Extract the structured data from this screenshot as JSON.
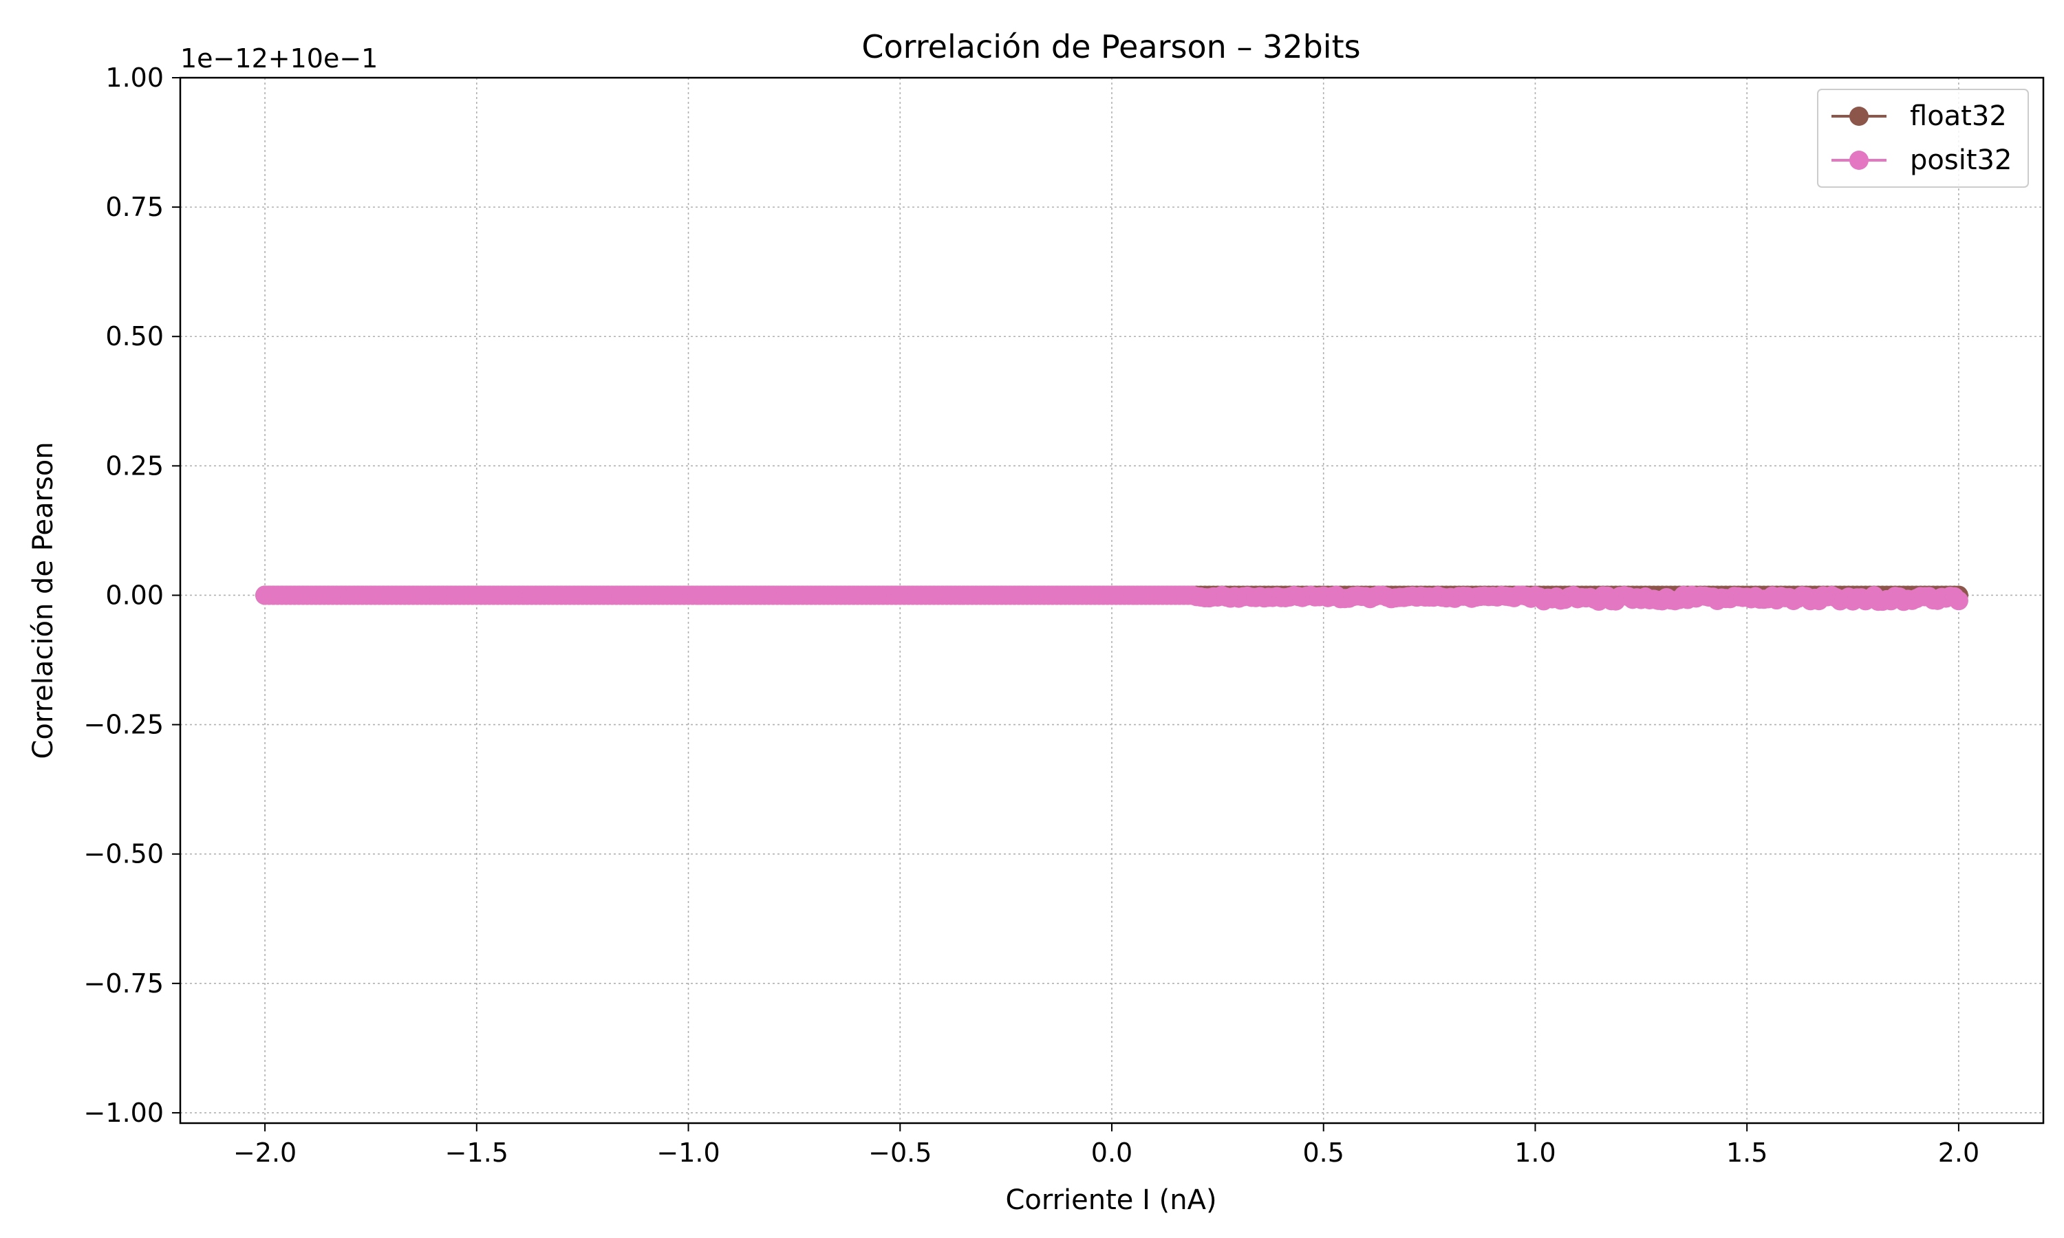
{
  "chart_data": {
    "type": "line",
    "title": "Correlación de Pearson – 32bits",
    "xlabel": "Corriente I (nA)",
    "ylabel": "Correlación de Pearson",
    "y_offset_text": "1e−12+10e−1",
    "xlim": [
      -2.2,
      2.2
    ],
    "ylim": [
      -1.02,
      1.0
    ],
    "x_ticks": [
      -2.0,
      -1.5,
      -1.0,
      -0.5,
      0.0,
      0.5,
      1.0,
      1.5,
      2.0
    ],
    "x_tick_labels": [
      "−2.0",
      "−1.5",
      "−1.0",
      "−0.5",
      "0.0",
      "0.5",
      "1.0",
      "1.5",
      "2.0"
    ],
    "y_ticks": [
      1.0,
      0.75,
      0.5,
      0.25,
      0.0,
      -0.25,
      -0.5,
      -0.75,
      -1.0
    ],
    "y_tick_labels": [
      "1.00",
      "0.75",
      "0.50",
      "0.25",
      "0.00",
      "−0.25",
      "−0.50",
      "−0.75",
      "−1.00"
    ],
    "grid": true,
    "legend_position": "top-right",
    "x_range": [
      -2.0,
      2.0
    ],
    "series": [
      {
        "name": "float32",
        "color": "#8c564b",
        "y_value": 0.0
      },
      {
        "name": "posit32",
        "color": "#e377c2",
        "y_value": 0.0
      }
    ]
  }
}
